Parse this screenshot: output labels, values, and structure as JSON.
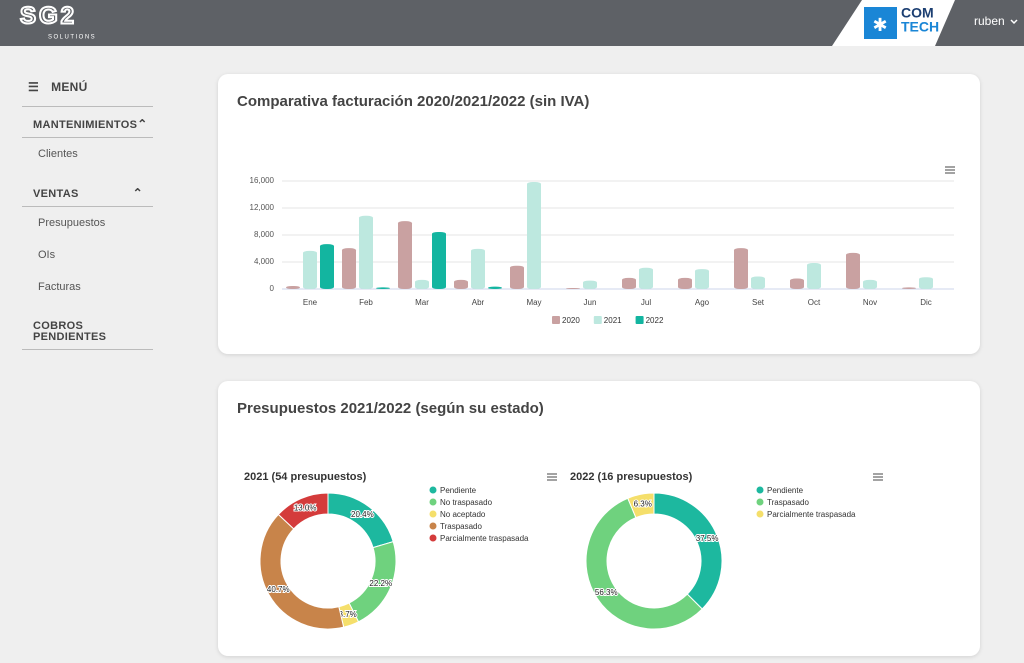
{
  "header": {
    "logo": "SG2",
    "logo_subtitle": "SOLUTIONS",
    "partner_logo": [
      "COM",
      "TECH"
    ],
    "user": "ruben"
  },
  "sidebar": {
    "menu": "MENÚ",
    "sections": [
      {
        "title": "MANTENIMIENTOS",
        "items": [
          "Clientes"
        ]
      },
      {
        "title": "VENTAS",
        "items": [
          "Presupuestos",
          "OIs",
          "Facturas"
        ]
      },
      {
        "title": "COBROS PENDIENTES"
      }
    ]
  },
  "section_title": "Presupuestos 2021/2022 (según su estado)",
  "chart_data": [
    {
      "type": "bar",
      "title": "Comparativa facturación 2020/2021/2022 (sin IVA)",
      "categories": [
        "Ene",
        "Feb",
        "Mar",
        "Abr",
        "May",
        "Jun",
        "Jul",
        "Ago",
        "Set",
        "Oct",
        "Nov",
        "Dic"
      ],
      "series": [
        {
          "name": "2020",
          "color": "#c9a1a1",
          "values": [
            300,
            5900,
            9900,
            1200,
            3300,
            0,
            1500,
            1500,
            5900,
            1400,
            5200,
            100
          ]
        },
        {
          "name": "2021",
          "color": "#bde8df",
          "values": [
            5500,
            10700,
            1200,
            5800,
            15700,
            1100,
            3000,
            2800,
            1700,
            3700,
            1200,
            1600
          ]
        },
        {
          "name": "2022",
          "color": "#13b5a0",
          "values": [
            6500,
            100,
            8300,
            200,
            null,
            null,
            null,
            null,
            null,
            null,
            null,
            null
          ]
        }
      ],
      "ylim": [
        0,
        16000
      ],
      "yticks": [
        0,
        {
          "value": 4000,
          "label": "4,000"
        },
        {
          "value": 8000,
          "label": "8,000"
        },
        {
          "value": 12000,
          "label": "12,000"
        },
        {
          "value": 16000,
          "label": "16,000"
        }
      ],
      "grid": true,
      "legend": "bottom"
    },
    {
      "type": "pie",
      "title": "2021 (54 presupuestos)",
      "categories": [
        "Pendiente",
        "No traspasado",
        "No aceptado",
        "Traspasado",
        "Parcialmente traspasada"
      ],
      "values": [
        20.4,
        22.2,
        3.7,
        40.7,
        13.0
      ],
      "value_labels": [
        "20.4%",
        "22.2%",
        "3.7%",
        "40.7%",
        "13.0%"
      ],
      "colors": [
        "#1db89f",
        "#6fd27e",
        "#f5df6b",
        "#c8844a",
        "#d43b3b"
      ],
      "legend": "right"
    },
    {
      "type": "pie",
      "title": "2022 (16 presupuestos)",
      "categories": [
        "Pendiente",
        "Traspasado",
        "Parcialmente traspasada"
      ],
      "values": [
        37.5,
        56.3,
        6.3
      ],
      "value_labels": [
        "37.5%",
        "56.3%",
        "6.3%"
      ],
      "colors": [
        "#1db89f",
        "#6fd27e",
        "#f5df6b"
      ],
      "legend": "right"
    }
  ]
}
